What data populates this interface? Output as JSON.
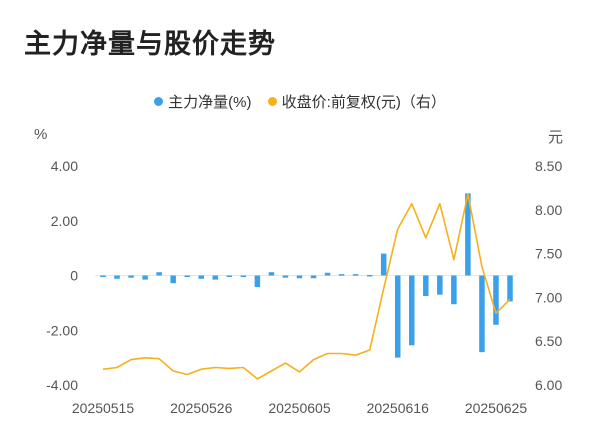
{
  "title": "主力净量与股价走势",
  "chart_data": {
    "type": "bar+line",
    "legend": [
      {
        "label": "主力净量(%)",
        "color": "#3aa0ea"
      },
      {
        "label": "收盘价:前复权(元)（右）",
        "color": "#f5b01b"
      }
    ],
    "left_axis": {
      "unit": "%",
      "ticks": [
        "4.00",
        "2.00",
        "0",
        "-2.00",
        "-4.00"
      ],
      "range": [
        -4,
        4
      ]
    },
    "right_axis": {
      "unit": "元",
      "ticks": [
        "8.50",
        "8.00",
        "7.50",
        "7.00",
        "6.50",
        "6.00"
      ],
      "range": [
        6.0,
        8.5
      ]
    },
    "x_ticks": [
      "20250515",
      "20250526",
      "20250605",
      "20250616",
      "20250625"
    ],
    "x_tick_index": [
      0,
      7,
      14,
      21,
      28
    ],
    "series": [
      {
        "name": "主力净量(%)",
        "type": "bar",
        "values": [
          -0.05,
          -0.12,
          -0.08,
          -0.15,
          0.12,
          -0.28,
          -0.05,
          -0.12,
          -0.15,
          -0.05,
          -0.05,
          -0.42,
          0.12,
          -0.08,
          -0.1,
          -0.1,
          0.1,
          0.05,
          0.05,
          0.02,
          0.8,
          -3.0,
          -2.55,
          -0.75,
          -0.7,
          -1.05,
          3.0,
          -2.8,
          -1.8,
          -0.95
        ]
      },
      {
        "name": "收盘价:前复权(元)（右）",
        "type": "line",
        "values": [
          6.18,
          6.2,
          6.29,
          6.31,
          6.3,
          6.16,
          6.12,
          6.18,
          6.2,
          6.19,
          6.2,
          6.07,
          6.16,
          6.25,
          6.15,
          6.29,
          6.36,
          6.36,
          6.34,
          6.4,
          7.1,
          7.78,
          8.07,
          7.68,
          8.07,
          7.43,
          8.18,
          7.35,
          6.82,
          6.98
        ]
      }
    ]
  }
}
